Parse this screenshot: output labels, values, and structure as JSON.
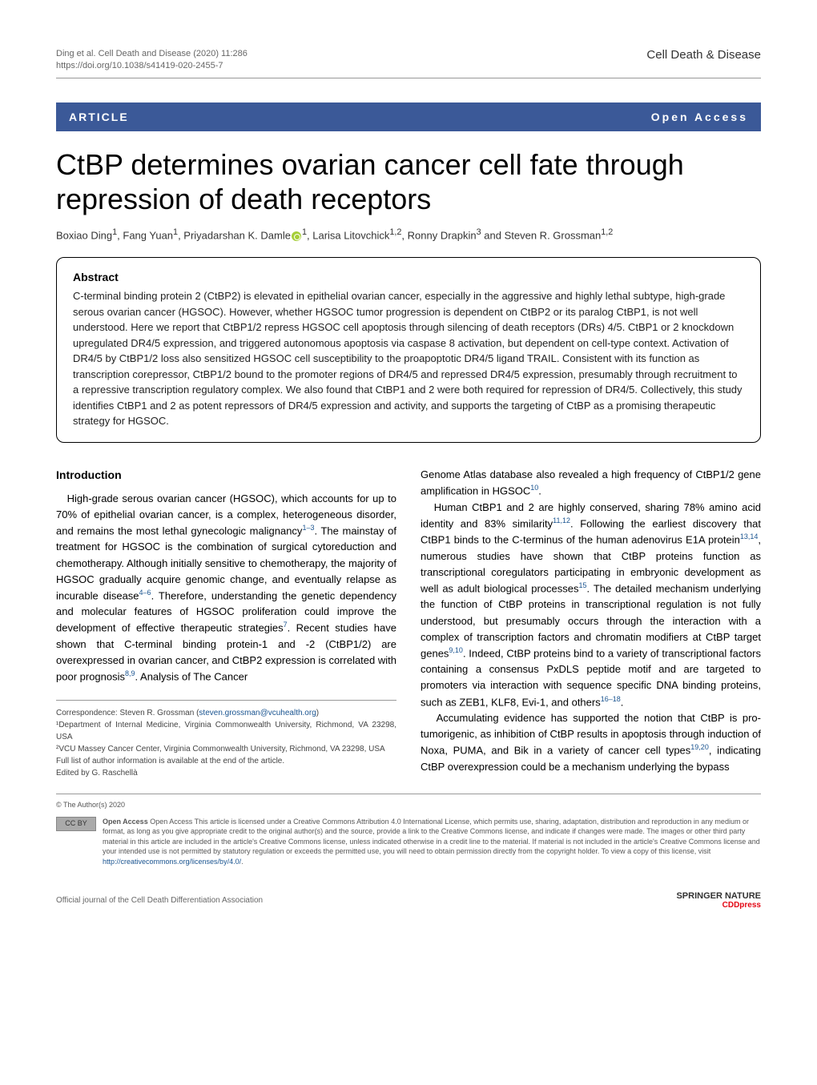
{
  "header": {
    "citation_line1": "Ding et al. Cell Death and Disease        (2020) 11:286",
    "doi": "https://doi.org/10.1038/s41419-020-2455-7",
    "journal": "Cell Death & Disease"
  },
  "article_bar": {
    "label": "ARTICLE",
    "access": "Open Access"
  },
  "title": "CtBP determines ovarian cancer cell fate through repression of death receptors",
  "authors_html": "Boxiao Ding<sup>1</sup>, Fang Yuan<sup>1</sup>, Priyadarshan K. Damle ORCID<sup>1</sup>, Larisa Litovchick<sup>1,2</sup>, Ronny Drapkin<sup>3</sup> and Steven R. Grossman<sup>1,2</sup>",
  "authors": {
    "a1": "Boxiao Ding",
    "a1_aff": "1",
    "a2": "Fang Yuan",
    "a2_aff": "1",
    "a3": "Priyadarshan K. Damle",
    "a3_aff": "1",
    "a4": "Larisa Litovchick",
    "a4_aff": "1,2",
    "a5": "Ronny Drapkin",
    "a5_aff": "3",
    "a6": "Steven R. Grossman",
    "a6_aff": "1,2"
  },
  "abstract": {
    "heading": "Abstract",
    "text": "C-terminal binding protein 2 (CtBP2) is elevated in epithelial ovarian cancer, especially in the aggressive and highly lethal subtype, high-grade serous ovarian cancer (HGSOC). However, whether HGSOC tumor progression is dependent on CtBP2 or its paralog CtBP1, is not well understood. Here we report that CtBP1/2 repress HGSOC cell apoptosis through silencing of death receptors (DRs) 4/5. CtBP1 or 2 knockdown upregulated DR4/5 expression, and triggered autonomous apoptosis via caspase 8 activation, but dependent on cell-type context. Activation of DR4/5 by CtBP1/2 loss also sensitized HGSOC cell susceptibility to the proapoptotic DR4/5 ligand TRAIL. Consistent with its function as transcription corepressor, CtBP1/2 bound to the promoter regions of DR4/5 and repressed DR4/5 expression, presumably through recruitment to a repressive transcription regulatory complex. We also found that CtBP1 and 2 were both required for repression of DR4/5. Collectively, this study identifies CtBP1 and 2 as potent repressors of DR4/5 expression and activity, and supports the targeting of CtBP as a promising therapeutic strategy for HGSOC."
  },
  "intro": {
    "heading": "Introduction",
    "col1_p1": "High-grade serous ovarian cancer (HGSOC), which accounts for up to 70% of epithelial ovarian cancer, is a complex, heterogeneous disorder, and remains the most lethal gynecologic malignancy",
    "col1_ref1": "1–3",
    "col1_p1b": ". The mainstay of treatment for HGSOC is the combination of surgical cytoreduction and chemotherapy. Although initially sensitive to chemotherapy, the majority of HGSOC gradually acquire genomic change, and eventually relapse as incurable disease",
    "col1_ref2": "4–6",
    "col1_p1c": ". Therefore, understanding the genetic dependency and molecular features of HGSOC proliferation could improve the development of effective therapeutic strategies",
    "col1_ref3": "7",
    "col1_p1d": ". Recent studies have shown that C-terminal binding protein-1 and -2 (CtBP1/2) are overexpressed in ovarian cancer, and CtBP2 expression is correlated with poor prognosis",
    "col1_ref4": "8,9",
    "col1_p1e": ". Analysis of The Cancer",
    "col2_p1": "Genome Atlas database also revealed a high frequency of CtBP1/2 gene amplification in HGSOC",
    "col2_ref1": "10",
    "col2_p1b": ".",
    "col2_p2": "Human CtBP1 and 2 are highly conserved, sharing 78% amino acid identity and 83% similarity",
    "col2_ref2": "11,12",
    "col2_p2b": ". Following the earliest discovery that CtBP1 binds to the C-terminus of the human adenovirus E1A protein",
    "col2_ref3": "13,14",
    "col2_p2c": ", numerous studies have shown that CtBP proteins function as transcriptional coregulators participating in embryonic development as well as adult biological processes",
    "col2_ref4": "15",
    "col2_p2d": ". The detailed mechanism underlying the function of CtBP proteins in transcriptional regulation is not fully understood, but presumably occurs through the interaction with a complex of transcription factors and chromatin modifiers at CtBP target genes",
    "col2_ref5": "9,10",
    "col2_p2e": ". Indeed, CtBP proteins bind to a variety of transcriptional factors containing a consensus PxDLS peptide motif and are targeted to promoters via interaction with sequence specific DNA binding proteins, such as ZEB1, KLF8, Evi-1, and others",
    "col2_ref6": "16–18",
    "col2_p2f": ".",
    "col2_p3": "Accumulating evidence has supported the notion that CtBP is pro-tumorigenic, as inhibition of CtBP results in apoptosis through induction of Noxa, PUMA, and Bik in a variety of cancer cell types",
    "col2_ref7": "19,20",
    "col2_p3b": ", indicating CtBP overexpression could be a mechanism underlying the bypass"
  },
  "correspondence": {
    "line1": "Correspondence: Steven R. Grossman (",
    "email": "steven.grossman@vcuhealth.org",
    "line1b": ")",
    "aff1": "¹Department of Internal Medicine, Virginia Commonwealth University, Richmond, VA 23298, USA",
    "aff2": "²VCU Massey Cancer Center, Virginia Commonwealth University, Richmond, VA 23298, USA",
    "note1": "Full list of author information is available at the end of the article.",
    "note2": "Edited by G. Raschellà"
  },
  "license": {
    "copyright": "© The Author(s) 2020",
    "cc_label": "CC BY",
    "text": "Open Access This article is licensed under a Creative Commons Attribution 4.0 International License, which permits use, sharing, adaptation, distribution and reproduction in any medium or format, as long as you give appropriate credit to the original author(s) and the source, provide a link to the Creative Commons license, and indicate if changes were made. The images or other third party material in this article are included in the article's Creative Commons license, unless indicated otherwise in a credit line to the material. If material is not included in the article's Creative Commons license and your intended use is not permitted by statutory regulation or exceeds the permitted use, you will need to obtain permission directly from the copyright holder. To view a copy of this license, visit ",
    "url": "http://creativecommons.org/licenses/by/4.0/"
  },
  "footer": {
    "official": "Official journal of the Cell Death Differentiation Association",
    "springer": "SPRINGER NATURE",
    "cdd": "CDDpress"
  },
  "colors": {
    "bar_bg": "#3b5998",
    "link": "#1a5490",
    "orcid": "#a6ce39",
    "cdd_red": "#e30613"
  }
}
